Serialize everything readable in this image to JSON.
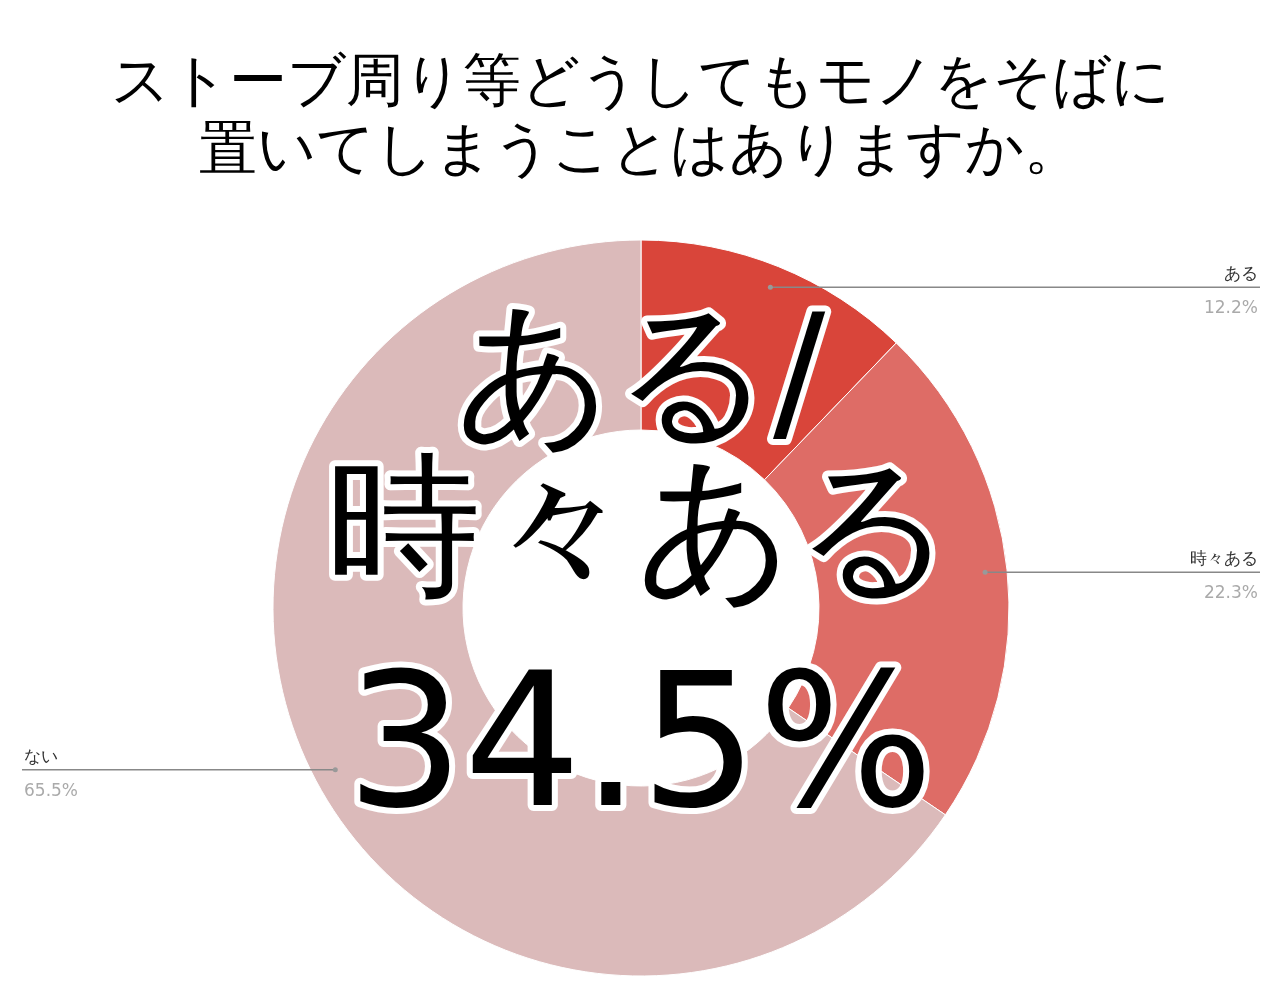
{
  "chart_data": {
    "type": "donut",
    "title": "ストーブ周り等どうしてもモノをそばに置いてしまうことはありますか。",
    "categories": [
      "ある",
      "時々ある",
      "ない"
    ],
    "values": [
      12.2,
      22.3,
      65.5
    ],
    "colors": [
      "#d9453a",
      "#de6c66",
      "#dbbaba"
    ],
    "value_labels": [
      "12.2%",
      "22.3%",
      "65.5%"
    ],
    "annotations": [
      "ある/",
      "時々ある",
      "34.5%"
    ]
  }
}
